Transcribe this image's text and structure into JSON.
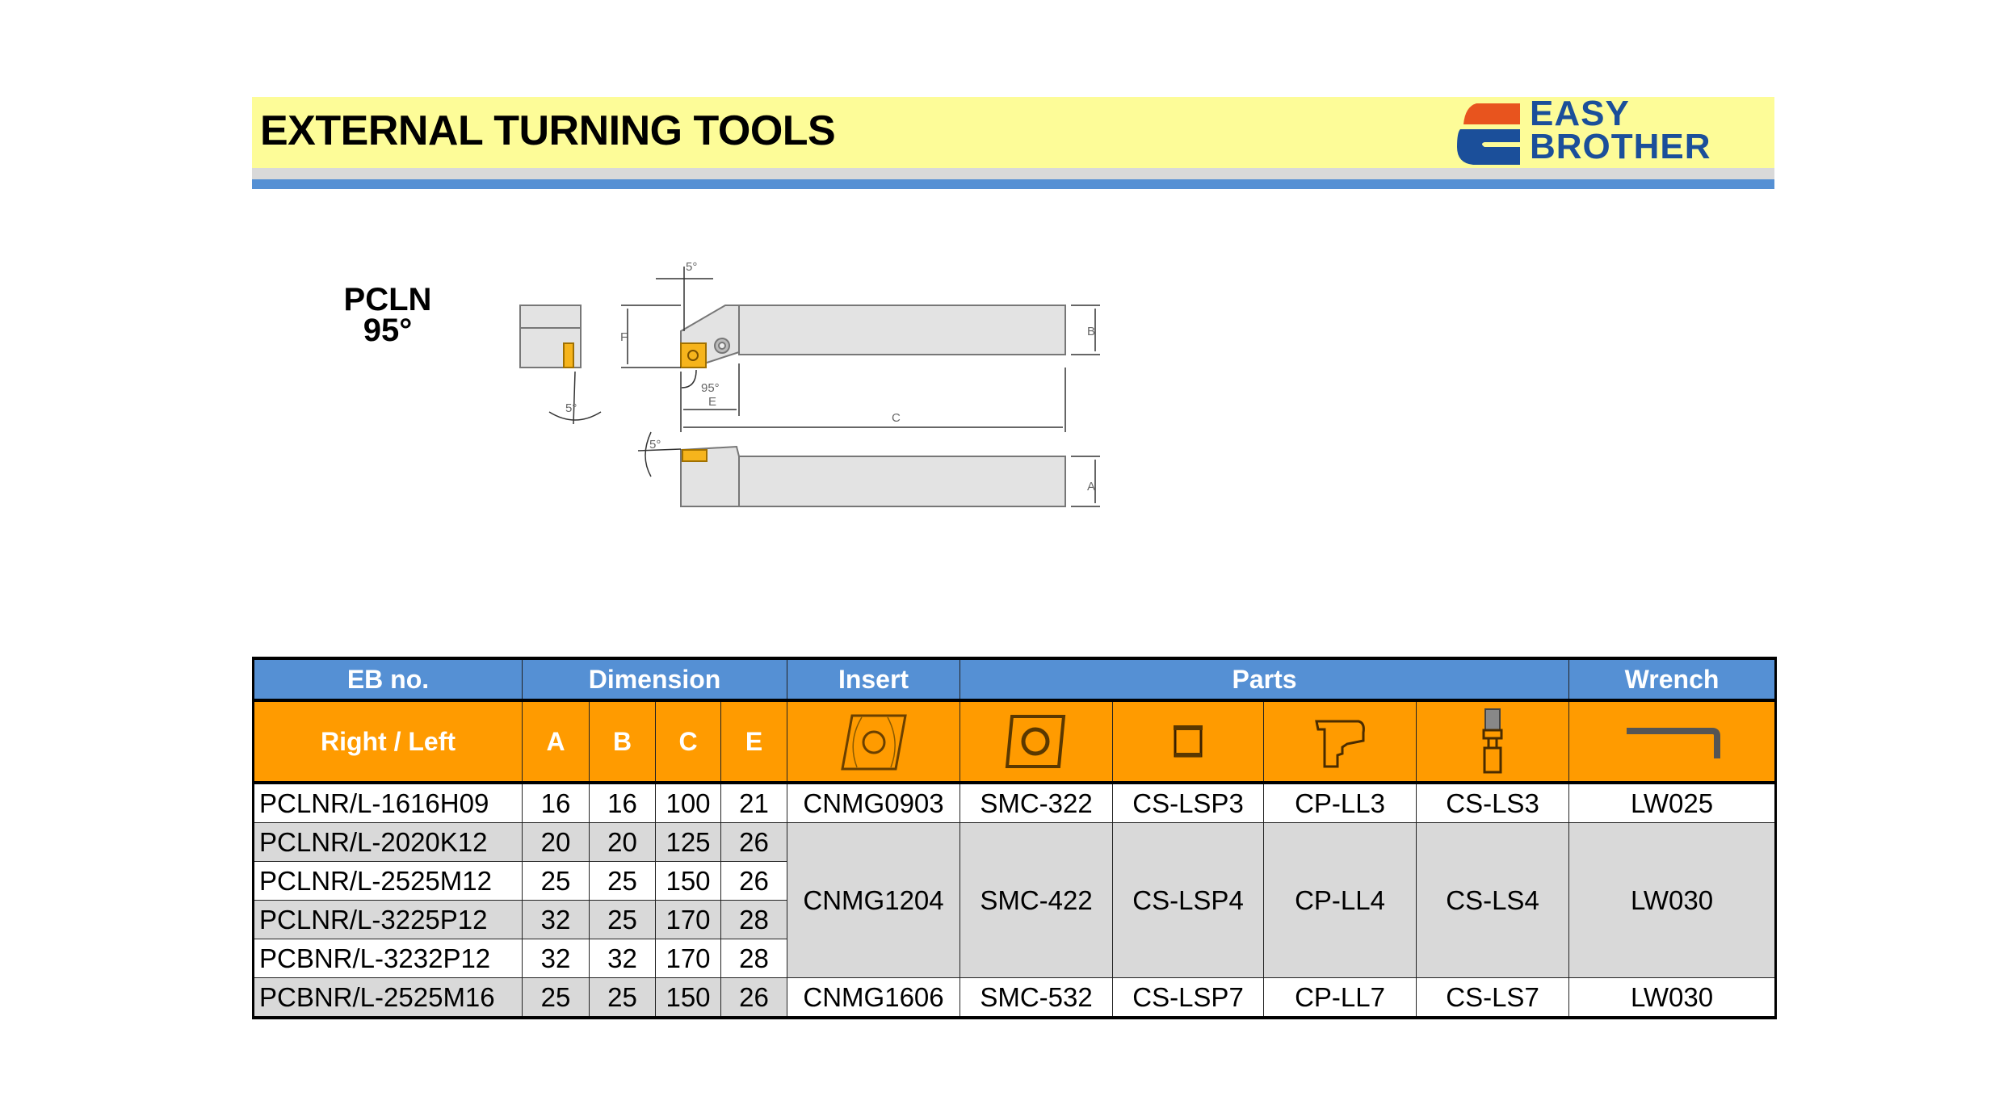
{
  "header": {
    "title": "EXTERNAL TURNING TOOLS",
    "logo_text": [
      "EASY",
      "BROTHER"
    ],
    "colors": {
      "yellow": "#fdfc98",
      "blue": "#5590d4",
      "logo_blue": "#1b4f9a",
      "logo_orange": "#e8541e"
    }
  },
  "model": {
    "name": "PCLN",
    "angle": "95°"
  },
  "drawing": {
    "labels": {
      "top_angle": "5°",
      "side_angle": "5°",
      "lead_angle": "95°",
      "bottom_angle": "5°",
      "F": "F",
      "B": "B",
      "E": "E",
      "C": "C",
      "A": "A"
    }
  },
  "table": {
    "group_headers": [
      "EB no.",
      "Dimension",
      "Insert",
      "Parts",
      "Wrench"
    ],
    "sub_headers": {
      "eb": "Right / Left",
      "dims": [
        "A",
        "B",
        "C",
        "E"
      ]
    },
    "part_icons": [
      "insert-icon",
      "shim-icon",
      "shim-pin-icon",
      "clamp-lever-icon",
      "screw-icon",
      "hex-wrench-icon"
    ],
    "rows": [
      {
        "eb": "PCLNR/L-1616H09",
        "A": "16",
        "B": "16",
        "C": "100",
        "E": "21"
      },
      {
        "eb": "PCLNR/L-2020K12",
        "A": "20",
        "B": "20",
        "C": "125",
        "E": "26"
      },
      {
        "eb": "PCLNR/L-2525M12",
        "A": "25",
        "B": "25",
        "C": "150",
        "E": "26"
      },
      {
        "eb": "PCLNR/L-3225P12",
        "A": "32",
        "B": "25",
        "C": "170",
        "E": "28"
      },
      {
        "eb": "PCBNR/L-3232P12",
        "A": "32",
        "B": "32",
        "C": "170",
        "E": "28"
      },
      {
        "eb": "PCBNR/L-2525M16",
        "A": "25",
        "B": "25",
        "C": "150",
        "E": "26"
      }
    ],
    "parts_groups": [
      {
        "insert": "CNMG0903",
        "shim": "SMC-322",
        "pin": "CS-LSP3",
        "clamp": "CP-LL3",
        "screw": "CS-LS3",
        "wrench": "LW025"
      },
      {
        "insert": "CNMG1204",
        "shim": "SMC-422",
        "pin": "CS-LSP4",
        "clamp": "CP-LL4",
        "screw": "CS-LS4",
        "wrench": "LW030"
      },
      {
        "insert": "CNMG1606",
        "shim": "SMC-532",
        "pin": "CS-LSP7",
        "clamp": "CP-LL7",
        "screw": "CS-LS7",
        "wrench": "LW030"
      }
    ],
    "colors": {
      "header_blue": "#5590d4",
      "header_orange": "#ff9b00",
      "row_gray": "#d9d9d9"
    }
  }
}
